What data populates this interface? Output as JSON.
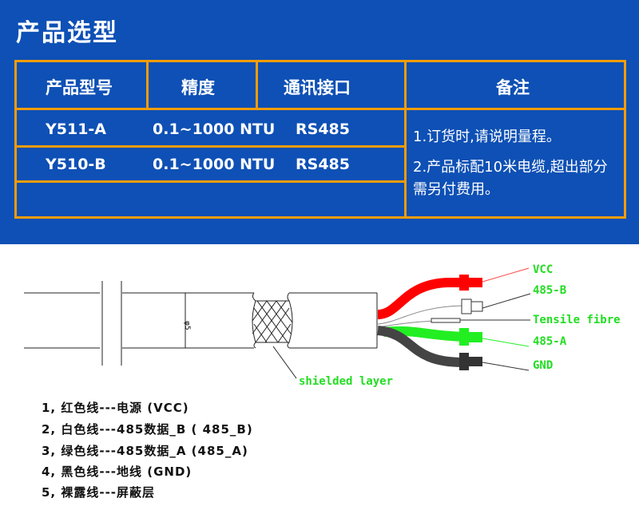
{
  "title": "产品选型",
  "table": {
    "headers": [
      "产品型号",
      "精度",
      "通讯接口",
      "备注"
    ],
    "rows": [
      [
        "Y511-A",
        "0.1~1000 NTU",
        "RS485"
      ],
      [
        "Y510-B",
        "0.1~1000 NTU",
        "RS485"
      ]
    ],
    "notes": [
      "1.订货时,请说明量程。",
      "2.产品标配10米电缆,超出部分需另付费用。"
    ]
  },
  "diagram": {
    "labels": {
      "vcc": "VCC",
      "b": "485-B",
      "fibre": "Tensile fibre",
      "a": "485-A",
      "gnd": "GND",
      "shield": "shielded layer",
      "dia": "φ5"
    },
    "colors": {
      "vcc": "#ff0000",
      "a": "#22ee22",
      "gnd": "#444444",
      "label": "#22dd22"
    }
  },
  "legend": [
    "1, 红色线---电源 (VCC)",
    "2, 白色线---485数据_B ( 485_B)",
    "3, 绿色线---485数据_A (485_A)",
    "4, 黑色线---地线 (GND)",
    "5, 裸露线---屏蔽层"
  ]
}
